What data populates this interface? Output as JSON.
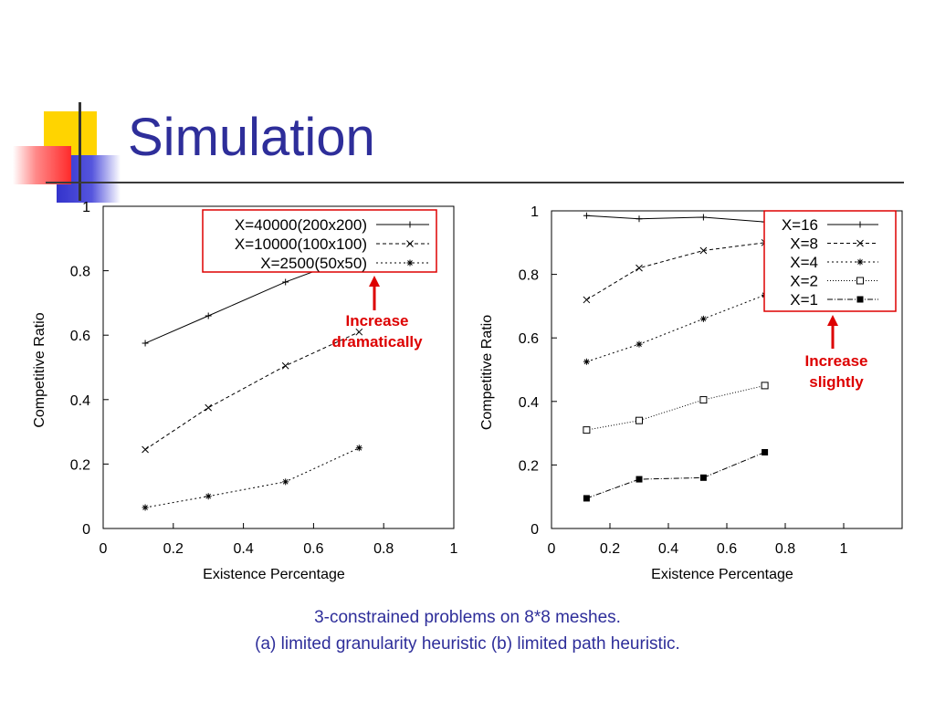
{
  "slide": {
    "title": "Simulation",
    "caption_line1": "3-constrained problems on 8*8 meshes.",
    "caption_line2": "(a) limited granularity heuristic (b) limited path heuristic.",
    "title_color": "#2e2e9a",
    "annotation_color": "#dd0000"
  },
  "chart_data": [
    {
      "type": "line",
      "xlabel": "Existence Percentage",
      "ylabel": "Competitive Ratio",
      "xlim": [
        0,
        1
      ],
      "ylim": [
        0,
        1
      ],
      "xticks": [
        "0",
        "0.2",
        "0.4",
        "0.6",
        "0.8",
        "1"
      ],
      "yticks": [
        "0",
        "0.2",
        "0.4",
        "0.6",
        "0.8",
        "1"
      ],
      "grid": false,
      "legend_position": "top-right",
      "x": [
        0.12,
        0.3,
        0.52,
        0.73
      ],
      "series": [
        {
          "name": "X=40000(200x200)",
          "marker": "plus",
          "dash": "solid",
          "values": [
            0.575,
            0.66,
            0.765,
            0.85
          ]
        },
        {
          "name": "X=10000(100x100)",
          "marker": "x",
          "dash": "dashed",
          "values": [
            0.245,
            0.375,
            0.505,
            0.61
          ]
        },
        {
          "name": "X=2500(50x50)",
          "marker": "star",
          "dash": "dotted",
          "values": [
            0.065,
            0.1,
            0.145,
            0.25
          ]
        }
      ],
      "annotation": "Increase\ndramatically"
    },
    {
      "type": "line",
      "xlabel": "Existence Percentage",
      "ylabel": "Competitive Ratio",
      "xlim": [
        0,
        1.2
      ],
      "ylim": [
        0,
        1
      ],
      "xticks": [
        "0",
        "0.2",
        "0.4",
        "0.6",
        "0.8",
        "1"
      ],
      "yticks": [
        "0",
        "0.2",
        "0.4",
        "0.6",
        "0.8",
        "1"
      ],
      "grid": false,
      "legend_position": "top-right",
      "x": [
        0.12,
        0.3,
        0.52,
        0.73
      ],
      "series": [
        {
          "name": "X=16",
          "marker": "plus",
          "dash": "solid",
          "values": [
            0.985,
            0.975,
            0.98,
            0.965
          ]
        },
        {
          "name": "X=8",
          "marker": "x",
          "dash": "dashed",
          "values": [
            0.72,
            0.82,
            0.875,
            0.9
          ]
        },
        {
          "name": "X=4",
          "marker": "star",
          "dash": "dotted",
          "values": [
            0.525,
            0.58,
            0.66,
            0.735
          ]
        },
        {
          "name": "X=2",
          "marker": "open-square",
          "dash": "dotted-fine",
          "values": [
            0.31,
            0.34,
            0.405,
            0.45
          ]
        },
        {
          "name": "X=1",
          "marker": "filled-square",
          "dash": "dashdot",
          "values": [
            0.095,
            0.155,
            0.16,
            0.24
          ]
        }
      ],
      "annotation": "Increase\nslightly"
    }
  ]
}
